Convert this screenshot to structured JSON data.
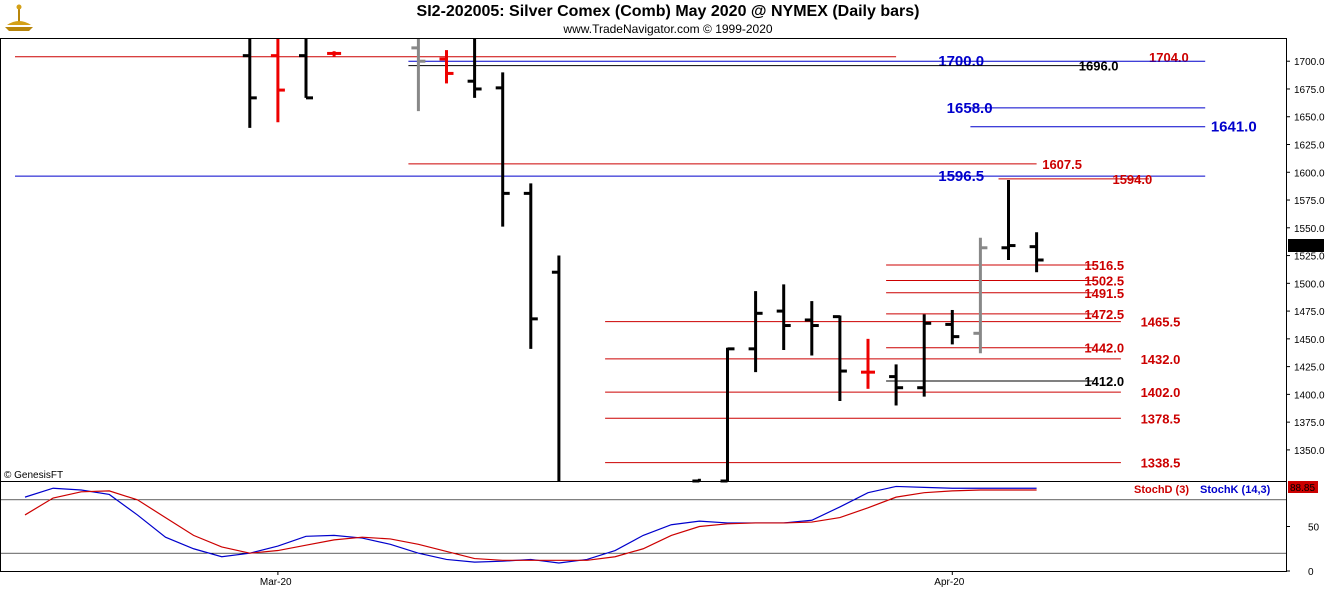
{
  "header": {
    "title": "SI2-202005:  Silver Comex (Comb) May 2020 @ NYMEX  (Daily bars)",
    "subtitle": "www.TradeNavigator.com © 1999-2020"
  },
  "copyright": "© GenesisFT",
  "colors": {
    "bar_up": "#000000",
    "bar_down": "#ee0000",
    "bar_neutral": "#888888",
    "resistance_red": "#cc0000",
    "blue_level": "#0000cc",
    "stoch_k": "#0000cc",
    "stoch_d": "#cc0000"
  },
  "chart_data": [
    {
      "type": "ohlc",
      "title": "SI2-202005:  Silver Comex (Comb) May 2020 @ NYMEX  (Daily bars)",
      "ylim": [
        1322,
        1720
      ],
      "y_ticks": [
        "1350.0",
        "1375.0",
        "1400.0",
        "1425.0",
        "1450.0",
        "1475.0",
        "1500.0",
        "1525.0",
        "1550.0",
        "1575.0",
        "1600.0",
        "1625.0",
        "1650.0",
        "1675.0",
        "1700.0"
      ],
      "x_labels": [
        {
          "index": 9,
          "label": "Mar-20"
        },
        {
          "index": 33,
          "label": "Apr-20"
        }
      ],
      "last_price": "1520.5",
      "bars": [
        {
          "i": 8,
          "o": 1705,
          "h": 1731,
          "l": 1640,
          "c": 1667,
          "color": "up"
        },
        {
          "i": 9,
          "o": 1705,
          "h": 1722,
          "l": 1645,
          "c": 1674,
          "color": "down"
        },
        {
          "i": 10,
          "o": 1705,
          "h": 1732,
          "l": 1667,
          "c": 1667,
          "color": "up"
        },
        {
          "i": 11,
          "o": 1707,
          "h": 1709,
          "l": 1704,
          "c": 1707,
          "color": "down"
        },
        {
          "i": 14,
          "o": 1712,
          "h": 1724,
          "l": 1655,
          "c": 1700,
          "color": "neutral"
        },
        {
          "i": 15,
          "o": 1702,
          "h": 1710,
          "l": 1680,
          "c": 1689,
          "color": "down"
        },
        {
          "i": 16,
          "o": 1682,
          "h": 1730,
          "l": 1667,
          "c": 1675,
          "color": "up"
        },
        {
          "i": 17,
          "o": 1676,
          "h": 1690,
          "l": 1551,
          "c": 1581,
          "color": "up"
        },
        {
          "i": 18,
          "o": 1581,
          "h": 1590,
          "l": 1441,
          "c": 1468,
          "color": "up"
        },
        {
          "i": 19,
          "o": 1510,
          "h": 1525,
          "l": 1250,
          "c": 1290,
          "color": "up"
        },
        {
          "i": 24,
          "o": 1322,
          "h": 1324,
          "l": 1310,
          "c": 1320,
          "color": "up"
        },
        {
          "i": 25,
          "o": 1322,
          "h": 1442,
          "l": 1300,
          "c": 1441,
          "color": "up"
        },
        {
          "i": 26,
          "o": 1441,
          "h": 1493,
          "l": 1420,
          "c": 1473,
          "color": "up"
        },
        {
          "i": 27,
          "o": 1475,
          "h": 1499,
          "l": 1440,
          "c": 1462,
          "color": "up"
        },
        {
          "i": 28,
          "o": 1467,
          "h": 1484,
          "l": 1435,
          "c": 1462,
          "color": "up"
        },
        {
          "i": 29,
          "o": 1470,
          "h": 1471,
          "l": 1394,
          "c": 1421,
          "color": "up"
        },
        {
          "i": 30,
          "o": 1420,
          "h": 1450,
          "l": 1405,
          "c": 1420,
          "color": "down"
        },
        {
          "i": 31,
          "o": 1416,
          "h": 1427,
          "l": 1390,
          "c": 1406,
          "color": "up"
        },
        {
          "i": 32,
          "o": 1406,
          "h": 1472,
          "l": 1398,
          "c": 1464,
          "color": "up"
        },
        {
          "i": 33,
          "o": 1463,
          "h": 1476,
          "l": 1445,
          "c": 1452,
          "color": "up"
        },
        {
          "i": 34,
          "o": 1455,
          "h": 1541,
          "l": 1437,
          "c": 1532,
          "color": "neutral"
        },
        {
          "i": 35,
          "o": 1532,
          "h": 1593,
          "l": 1521,
          "c": 1534,
          "color": "up"
        },
        {
          "i": 36,
          "o": 1533,
          "h": 1546,
          "l": 1510,
          "c": 1521,
          "color": "up"
        }
      ],
      "levels": [
        {
          "value": 1704.0,
          "label": "1704.0",
          "color": "red",
          "from": 0,
          "to": 31,
          "label_at": 40,
          "size": "sm"
        },
        {
          "value": 1700.0,
          "label": "1700.0",
          "color": "blue",
          "from": 14,
          "to": 42,
          "label_at": 32.5,
          "size": "md"
        },
        {
          "value": 1696.0,
          "label": "1696.0",
          "color": "black",
          "from": 14,
          "to": 38,
          "label_at": 37.5,
          "size": "sm"
        },
        {
          "value": 1658.0,
          "label": "1658.0",
          "color": "blue",
          "from": 34,
          "to": 42,
          "label_at": 32.8,
          "size": "md"
        },
        {
          "value": 1641.0,
          "label": "1641.0",
          "color": "blue",
          "from": 34,
          "to": 42,
          "label_at": 42.2,
          "size": "md"
        },
        {
          "value": 1607.5,
          "label": "1607.5",
          "color": "red",
          "from": 14,
          "to": 36,
          "label_at": 36.2,
          "size": "sm"
        },
        {
          "value": 1596.5,
          "label": "1596.5",
          "color": "blue",
          "from": 0,
          "to": 42,
          "label_at": 32.5,
          "size": "md"
        },
        {
          "value": 1594.0,
          "label": "1594.0",
          "color": "red",
          "from": 35,
          "to": 40,
          "label_at": 38.7,
          "size": "sm"
        },
        {
          "value": 1516.5,
          "label": "1516.5",
          "color": "red",
          "from": 31,
          "to": 38,
          "label_at": 37.7,
          "size": "sm"
        },
        {
          "value": 1502.5,
          "label": "1502.5",
          "color": "red",
          "from": 31,
          "to": 38,
          "label_at": 37.7,
          "size": "sm"
        },
        {
          "value": 1491.5,
          "label": "1491.5",
          "color": "red",
          "from": 31,
          "to": 38,
          "label_at": 37.7,
          "size": "sm"
        },
        {
          "value": 1472.5,
          "label": "1472.5",
          "color": "red",
          "from": 31,
          "to": 38,
          "label_at": 37.7,
          "size": "sm"
        },
        {
          "value": 1465.5,
          "label": "1465.5",
          "color": "red",
          "from": 21,
          "to": 39,
          "label_at": 39.7,
          "size": "sm"
        },
        {
          "value": 1442.0,
          "label": "1442.0",
          "color": "red",
          "from": 31,
          "to": 38,
          "label_at": 37.7,
          "size": "sm"
        },
        {
          "value": 1432.0,
          "label": "1432.0",
          "color": "red",
          "from": 21,
          "to": 39,
          "label_at": 39.7,
          "size": "sm"
        },
        {
          "value": 1412.0,
          "label": "1412.0",
          "color": "black",
          "from": 31,
          "to": 38,
          "label_at": 37.7,
          "size": "sm"
        },
        {
          "value": 1402.0,
          "label": "1402.0",
          "color": "red",
          "from": 21,
          "to": 39,
          "label_at": 39.7,
          "size": "sm"
        },
        {
          "value": 1378.5,
          "label": "1378.5",
          "color": "red",
          "from": 21,
          "to": 39,
          "label_at": 39.7,
          "size": "sm"
        },
        {
          "value": 1338.5,
          "label": "1338.5",
          "color": "red",
          "from": 21,
          "to": 39,
          "label_at": 39.7,
          "size": "sm"
        }
      ]
    },
    {
      "type": "line",
      "title": "Stochastic",
      "ylim": [
        0,
        100
      ],
      "y_ticks": [
        "0",
        "50"
      ],
      "reference_lines": [
        20,
        80
      ],
      "legend": [
        {
          "name": "StochD (3)",
          "color": "red"
        },
        {
          "name": "StochK (14,3)",
          "color": "blue"
        }
      ],
      "last_value": "88.85",
      "series": [
        {
          "name": "StochK (14,3)",
          "color": "blue",
          "x": [
            0,
            1,
            2,
            3,
            4,
            5,
            6,
            7,
            8,
            9,
            10,
            11,
            12,
            13,
            14,
            15,
            16,
            17,
            18,
            19,
            20,
            21,
            22,
            23,
            24,
            25,
            26,
            27,
            28,
            29,
            30,
            31,
            32,
            33,
            34,
            35,
            36
          ],
          "y": [
            83,
            93,
            91,
            86,
            63,
            38,
            25,
            16,
            20,
            28,
            39,
            40,
            37,
            30,
            20,
            13,
            10,
            11,
            13,
            9,
            13,
            23,
            40,
            52,
            56,
            54,
            54,
            54,
            57,
            72,
            88,
            95,
            94,
            93,
            93,
            93,
            93
          ]
        },
        {
          "name": "StochD (3)",
          "color": "red",
          "x": [
            0,
            1,
            2,
            3,
            4,
            5,
            6,
            7,
            8,
            9,
            10,
            11,
            12,
            13,
            14,
            15,
            16,
            17,
            18,
            19,
            20,
            21,
            22,
            23,
            24,
            25,
            26,
            27,
            28,
            29,
            30,
            31,
            32,
            33,
            34,
            35,
            36
          ],
          "y": [
            63,
            82,
            89,
            90,
            80,
            60,
            40,
            27,
            20,
            23,
            29,
            35,
            38,
            36,
            30,
            22,
            14,
            12,
            12,
            12,
            12,
            16,
            25,
            40,
            50,
            53,
            54,
            54,
            55,
            60,
            71,
            83,
            88,
            90,
            91,
            91,
            91
          ]
        }
      ]
    }
  ]
}
